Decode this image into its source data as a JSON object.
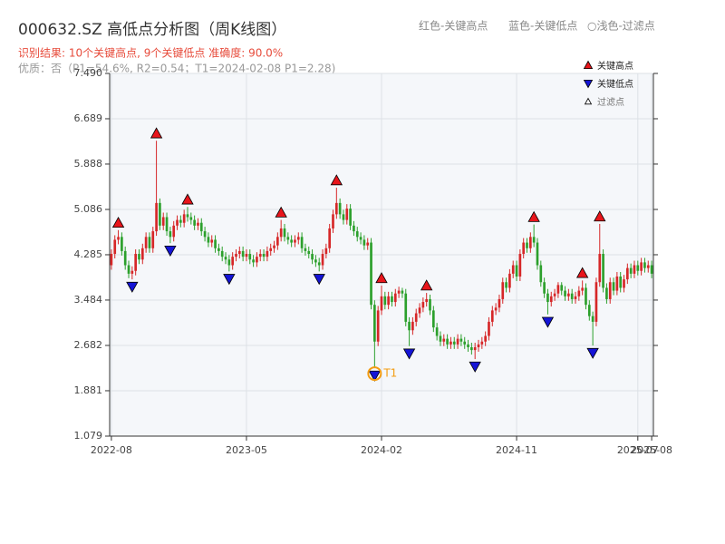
{
  "chart_data": {
    "type": "candlestick",
    "title": "000632.SZ 高低点分析图（周K线图）",
    "header_legend": [
      "红色-关键高点",
      "蓝色-关键低点",
      "○浅色-过滤点"
    ],
    "subtitle": "识别结果: 10个关键高点, 9个关键低点  准确度: 90.0%",
    "note": "优质：否（P1=54.6%, R2=0.54；T1=2024-02-08 P1=2.28)",
    "categories": [
      "2022-08",
      null,
      null,
      null,
      null,
      null,
      null,
      null,
      null,
      null,
      null,
      null,
      null,
      null,
      null,
      null,
      null,
      null,
      null,
      null,
      null,
      null,
      null,
      null,
      null,
      null,
      null,
      null,
      null,
      null,
      null,
      null,
      null,
      null,
      null,
      null,
      null,
      null,
      null,
      "2023-05",
      null,
      null,
      null,
      null,
      null,
      null,
      null,
      null,
      null,
      null,
      null,
      null,
      null,
      null,
      null,
      null,
      null,
      null,
      null,
      null,
      null,
      null,
      null,
      null,
      null,
      null,
      null,
      null,
      null,
      null,
      null,
      null,
      null,
      null,
      null,
      null,
      null,
      null,
      "2024-02",
      null,
      null,
      null,
      null,
      null,
      null,
      null,
      null,
      null,
      null,
      null,
      null,
      null,
      null,
      null,
      null,
      null,
      null,
      null,
      null,
      null,
      null,
      null,
      null,
      null,
      null,
      null,
      null,
      null,
      null,
      null,
      null,
      null,
      null,
      null,
      null,
      null,
      null,
      "2024-11",
      null,
      null,
      null,
      null,
      null,
      null,
      null,
      null,
      null,
      null,
      null,
      null,
      null,
      null,
      null,
      null,
      null,
      null,
      null,
      null,
      null,
      null,
      null,
      null,
      null,
      null,
      null,
      null,
      null,
      null,
      null,
      null,
      null,
      null,
      "2025-07",
      null,
      null,
      null,
      "2025-08"
    ],
    "open": [
      4.1,
      4.3,
      4.55,
      4.6,
      4.35,
      4.1,
      3.95,
      4.0,
      4.3,
      4.2,
      4.4,
      4.6,
      4.4,
      4.7,
      5.2,
      4.8,
      4.95,
      4.7,
      4.6,
      4.8,
      4.9,
      4.85,
      5.0,
      4.95,
      4.9,
      4.8,
      4.85,
      4.7,
      4.6,
      4.5,
      4.55,
      4.4,
      4.35,
      4.25,
      4.2,
      4.1,
      4.25,
      4.3,
      4.35,
      4.25,
      4.3,
      4.2,
      4.15,
      4.25,
      4.3,
      4.25,
      4.35,
      4.4,
      4.45,
      4.6,
      4.75,
      4.6,
      4.55,
      4.5,
      4.55,
      4.6,
      4.4,
      4.35,
      4.3,
      4.2,
      4.15,
      4.1,
      4.3,
      4.4,
      4.75,
      5.0,
      5.2,
      5.0,
      4.9,
      5.1,
      4.8,
      4.7,
      4.6,
      4.55,
      4.45,
      4.5,
      3.4,
      2.75,
      3.3,
      3.55,
      3.4,
      3.55,
      3.45,
      3.6,
      3.65,
      3.6,
      3.1,
      2.95,
      3.1,
      3.25,
      3.35,
      3.45,
      3.5,
      3.3,
      3.0,
      2.85,
      2.75,
      2.8,
      2.7,
      2.75,
      2.7,
      2.8,
      2.75,
      2.7,
      2.65,
      2.6,
      2.65,
      2.7,
      2.75,
      2.85,
      3.1,
      3.3,
      3.35,
      3.5,
      3.8,
      3.7,
      3.95,
      4.1,
      3.9,
      4.3,
      4.5,
      4.4,
      4.6,
      4.5,
      4.1,
      3.8,
      3.6,
      3.45,
      3.55,
      3.6,
      3.75,
      3.65,
      3.55,
      3.6,
      3.5,
      3.55,
      3.65,
      3.7,
      3.4,
      3.2,
      3.1,
      3.8,
      4.3,
      3.7,
      3.5,
      3.8,
      3.65,
      3.9,
      3.7,
      3.85,
      4.05,
      3.95,
      4.1,
      4.0,
      4.15,
      4.05,
      4.1
    ],
    "close": [
      4.3,
      4.55,
      4.6,
      4.35,
      4.1,
      3.95,
      4.0,
      4.3,
      4.2,
      4.4,
      4.6,
      4.4,
      4.7,
      5.2,
      4.8,
      4.95,
      4.7,
      4.6,
      4.8,
      4.9,
      4.85,
      5.0,
      4.95,
      4.9,
      4.8,
      4.85,
      4.7,
      4.6,
      4.5,
      4.55,
      4.4,
      4.35,
      4.25,
      4.2,
      4.1,
      4.25,
      4.3,
      4.35,
      4.25,
      4.3,
      4.2,
      4.15,
      4.25,
      4.3,
      4.25,
      4.35,
      4.4,
      4.45,
      4.6,
      4.75,
      4.6,
      4.55,
      4.5,
      4.55,
      4.6,
      4.4,
      4.35,
      4.3,
      4.2,
      4.15,
      4.1,
      4.3,
      4.4,
      4.75,
      5.0,
      5.2,
      5.0,
      4.9,
      5.1,
      4.8,
      4.7,
      4.6,
      4.55,
      4.45,
      4.5,
      3.4,
      2.75,
      3.3,
      3.55,
      3.4,
      3.55,
      3.45,
      3.6,
      3.65,
      3.6,
      3.1,
      2.95,
      3.1,
      3.25,
      3.35,
      3.45,
      3.5,
      3.3,
      3.0,
      2.85,
      2.75,
      2.8,
      2.7,
      2.75,
      2.7,
      2.8,
      2.75,
      2.7,
      2.65,
      2.6,
      2.65,
      2.7,
      2.75,
      2.85,
      3.1,
      3.3,
      3.35,
      3.5,
      3.8,
      3.7,
      3.95,
      4.1,
      3.9,
      4.3,
      4.5,
      4.4,
      4.6,
      4.5,
      4.1,
      3.8,
      3.6,
      3.45,
      3.55,
      3.6,
      3.75,
      3.65,
      3.55,
      3.6,
      3.5,
      3.55,
      3.65,
      3.7,
      3.4,
      3.2,
      3.1,
      3.8,
      4.3,
      3.7,
      3.5,
      3.8,
      3.65,
      3.9,
      3.7,
      3.85,
      4.05,
      3.95,
      4.1,
      4.0,
      4.15,
      4.05,
      4.1,
      3.95
    ],
    "high": [
      4.38,
      4.63,
      4.72,
      4.68,
      4.43,
      4.18,
      4.08,
      4.38,
      4.38,
      4.48,
      4.68,
      4.68,
      4.78,
      6.3,
      5.28,
      5.03,
      5.03,
      4.78,
      4.88,
      4.98,
      4.98,
      5.08,
      5.13,
      5.03,
      4.98,
      4.93,
      4.93,
      4.78,
      4.68,
      4.63,
      4.63,
      4.48,
      4.43,
      4.33,
      4.28,
      4.33,
      4.38,
      4.43,
      4.43,
      4.38,
      4.38,
      4.28,
      4.33,
      4.38,
      4.38,
      4.43,
      4.48,
      4.53,
      4.68,
      4.9,
      4.83,
      4.68,
      4.63,
      4.63,
      4.68,
      4.68,
      4.48,
      4.43,
      4.38,
      4.28,
      4.23,
      4.38,
      4.48,
      4.83,
      5.08,
      5.47,
      5.28,
      5.08,
      5.18,
      5.18,
      4.88,
      4.78,
      4.68,
      4.63,
      4.58,
      4.58,
      3.48,
      3.38,
      3.74,
      3.63,
      3.63,
      3.63,
      3.68,
      3.72,
      3.7,
      3.68,
      3.18,
      3.18,
      3.33,
      3.43,
      3.53,
      3.61,
      3.58,
      3.38,
      3.08,
      2.93,
      2.88,
      2.88,
      2.83,
      2.83,
      2.88,
      2.88,
      2.83,
      2.78,
      2.73,
      2.73,
      2.78,
      2.83,
      2.93,
      3.18,
      3.38,
      3.43,
      3.58,
      3.88,
      3.88,
      4.03,
      4.18,
      4.18,
      4.38,
      4.58,
      4.58,
      4.68,
      4.82,
      4.58,
      4.18,
      3.88,
      3.68,
      3.63,
      3.68,
      3.8,
      3.8,
      3.73,
      3.68,
      3.68,
      3.63,
      3.73,
      3.83,
      3.78,
      3.48,
      3.28,
      3.88,
      4.83,
      4.38,
      3.78,
      3.88,
      3.88,
      3.98,
      3.98,
      3.93,
      4.13,
      4.13,
      4.18,
      4.18,
      4.23,
      4.23,
      4.18,
      4.18
    ],
    "low": [
      4.02,
      4.22,
      4.47,
      4.27,
      4.02,
      3.87,
      3.85,
      3.92,
      4.12,
      4.12,
      4.32,
      4.32,
      4.32,
      4.62,
      4.72,
      4.72,
      4.62,
      4.49,
      4.52,
      4.72,
      4.77,
      4.77,
      4.87,
      4.82,
      4.72,
      4.72,
      4.62,
      4.52,
      4.42,
      4.42,
      4.32,
      4.27,
      4.17,
      4.12,
      3.99,
      4.02,
      4.17,
      4.22,
      4.17,
      4.17,
      4.12,
      4.07,
      4.07,
      4.17,
      4.17,
      4.17,
      4.27,
      4.32,
      4.37,
      4.52,
      4.52,
      4.47,
      4.42,
      4.42,
      4.47,
      4.32,
      4.27,
      4.22,
      4.12,
      4.07,
      3.99,
      4.02,
      4.22,
      4.32,
      4.67,
      4.92,
      4.92,
      4.82,
      4.82,
      4.72,
      4.62,
      4.52,
      4.47,
      4.37,
      4.37,
      3.32,
      2.28,
      2.67,
      3.22,
      3.32,
      3.32,
      3.37,
      3.37,
      3.52,
      3.52,
      3.02,
      2.67,
      2.87,
      3.02,
      3.17,
      3.27,
      3.37,
      3.22,
      2.92,
      2.77,
      2.67,
      2.67,
      2.62,
      2.62,
      2.62,
      2.62,
      2.67,
      2.62,
      2.57,
      2.52,
      2.44,
      2.57,
      2.62,
      2.67,
      2.77,
      3.02,
      3.22,
      3.27,
      3.42,
      3.62,
      3.62,
      3.87,
      3.82,
      3.82,
      4.22,
      4.32,
      4.32,
      4.42,
      4.02,
      3.72,
      3.52,
      3.23,
      3.37,
      3.47,
      3.52,
      3.57,
      3.47,
      3.47,
      3.42,
      3.42,
      3.47,
      3.57,
      3.32,
      3.12,
      2.68,
      3.02,
      3.72,
      3.62,
      3.42,
      3.42,
      3.57,
      3.57,
      3.62,
      3.62,
      3.77,
      3.87,
      3.87,
      3.92,
      3.92,
      3.97,
      3.97,
      3.87
    ],
    "up_color": "#d62728",
    "down_color": "#2ca02c",
    "ylim": [
      1.079,
      7.49
    ],
    "yticks": [
      1.079,
      1.881,
      2.682,
      3.484,
      4.285,
      5.086,
      5.888,
      6.689,
      {
        "value": 7.49,
        "label": "7.490"
      }
    ],
    "grid": true,
    "legend": "upper right",
    "key_highs": {
      "name": "关键高点",
      "color": "#e8151b",
      "indices": [
        2,
        13,
        22,
        49,
        65,
        78,
        91,
        122,
        136,
        141
      ]
    },
    "key_lows": {
      "name": "关键低点",
      "color": "#1414d6",
      "indices": [
        6,
        17,
        34,
        60,
        76,
        86,
        105,
        126,
        139
      ]
    },
    "filtered": {
      "name": "过滤点",
      "color": "#ffffff"
    },
    "annotation": {
      "text": "T1",
      "index": 76,
      "color": "#f39c12"
    }
  }
}
